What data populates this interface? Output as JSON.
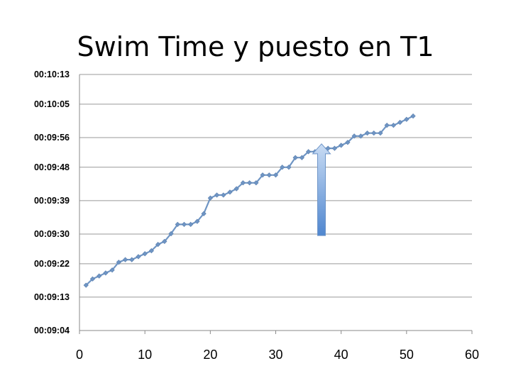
{
  "chart_data": {
    "type": "line",
    "title": "Swim Time y puesto en T1",
    "xlabel": "",
    "ylabel": "",
    "xlim": [
      0,
      60
    ],
    "x_ticks": [
      "0",
      "10",
      "20",
      "30",
      "40",
      "50",
      "60"
    ],
    "x_tick_values": [
      0,
      10,
      20,
      30,
      40,
      50,
      60
    ],
    "ylim": [
      544,
      613
    ],
    "y_ticks": [
      "00:09:04",
      "00:09:13",
      "00:09:22",
      "00:09:30",
      "00:09:39",
      "00:09:48",
      "00:09:56",
      "00:10:05",
      "00:10:13"
    ],
    "y_tick_values": [
      544,
      553,
      562,
      570,
      579,
      588,
      596,
      605,
      613
    ],
    "y_unit": "seconds",
    "grid": true,
    "series_color": "#6f95c4",
    "series": [
      {
        "x": [
          1,
          2,
          3,
          4,
          5,
          6,
          7,
          8,
          9,
          10,
          11,
          12,
          13,
          14,
          15,
          16,
          17,
          18,
          19,
          20,
          21,
          22,
          23,
          24,
          25,
          26,
          27,
          28,
          29,
          30,
          31,
          32,
          33,
          34,
          35,
          36,
          37,
          38,
          39,
          40,
          41,
          42,
          43,
          44,
          45,
          46,
          47,
          48,
          49,
          50,
          51
        ],
        "values": [
          556.2,
          557.9,
          558.7,
          559.5,
          560.3,
          562.4,
          563.1,
          563.1,
          563.9,
          564.7,
          565.5,
          567.2,
          568.0,
          570.1,
          572.6,
          572.6,
          572.6,
          573.4,
          575.5,
          579.7,
          580.5,
          580.5,
          581.3,
          582.2,
          583.8,
          583.8,
          583.8,
          585.9,
          585.9,
          585.9,
          588.0,
          588.0,
          590.6,
          590.6,
          592.2,
          592.2,
          593.1,
          593.1,
          593.1,
          593.9,
          594.7,
          596.4,
          596.4,
          597.2,
          597.2,
          597.2,
          599.3,
          599.3,
          600.1,
          600.9,
          601.8
        ]
      }
    ]
  },
  "annotation": {
    "type": "arrow-up",
    "x": 37,
    "y_from": 569.6,
    "y_to": 594.3,
    "color": "#5b8fd1"
  }
}
